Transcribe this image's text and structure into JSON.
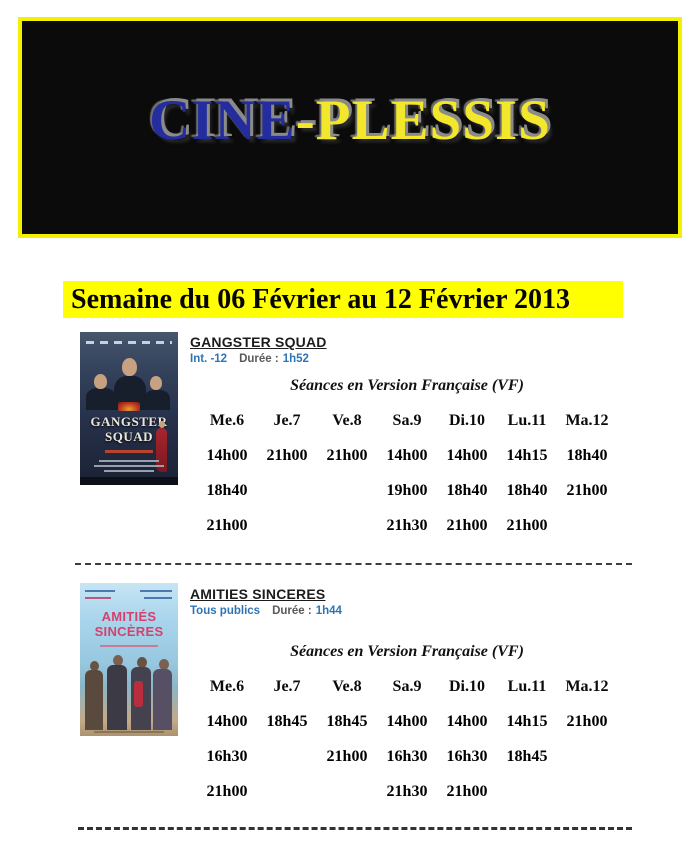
{
  "banner": {
    "title_blue": "CINE",
    "title_yellow": "-PLESSIS",
    "background": "#0b0b0b",
    "border_color": "#f2f200",
    "blue_color": "#232d9e",
    "yellow_color": "#f2e72a"
  },
  "week_title": "Semaine du 06 Février au 12 Février 2013",
  "week_title_highlight": "#ffff00",
  "seances_label": "Séances en Version Française (VF)",
  "days": [
    "Me.6",
    "Je.7",
    "Ve.8",
    "Sa.9",
    "Di.10",
    "Lu.11",
    "Ma.12"
  ],
  "info_blue_color": "#2e74b5",
  "movies": [
    {
      "title": "GANGSTER SQUAD",
      "rating": "Int. -12",
      "duration_label": "Durée :",
      "duration": "1h52",
      "poster_title_line1": "GANGSTER",
      "poster_title_line2": "SQUAD",
      "showtimes": [
        [
          "14h00",
          "21h00",
          "21h00",
          "14h00",
          "14h00",
          "14h15",
          "18h40"
        ],
        [
          "18h40",
          "",
          "",
          "19h00",
          "18h40",
          "18h40",
          "21h00"
        ],
        [
          "21h00",
          "",
          "",
          "21h30",
          "21h00",
          "21h00",
          ""
        ]
      ]
    },
    {
      "title": "AMITIES SINCERES",
      "rating": "Tous publics",
      "duration_label": "Durée :",
      "duration": "1h44",
      "poster_title_line1": "AMITIÉS",
      "poster_title_line2": "SINCÈRES",
      "showtimes": [
        [
          "14h00",
          "18h45",
          "18h45",
          "14h00",
          "14h00",
          "14h15",
          "21h00"
        ],
        [
          "16h30",
          "",
          "21h00",
          "16h30",
          "16h30",
          "18h45",
          ""
        ],
        [
          "21h00",
          "",
          "",
          "21h30",
          "21h00",
          "",
          ""
        ]
      ]
    }
  ]
}
